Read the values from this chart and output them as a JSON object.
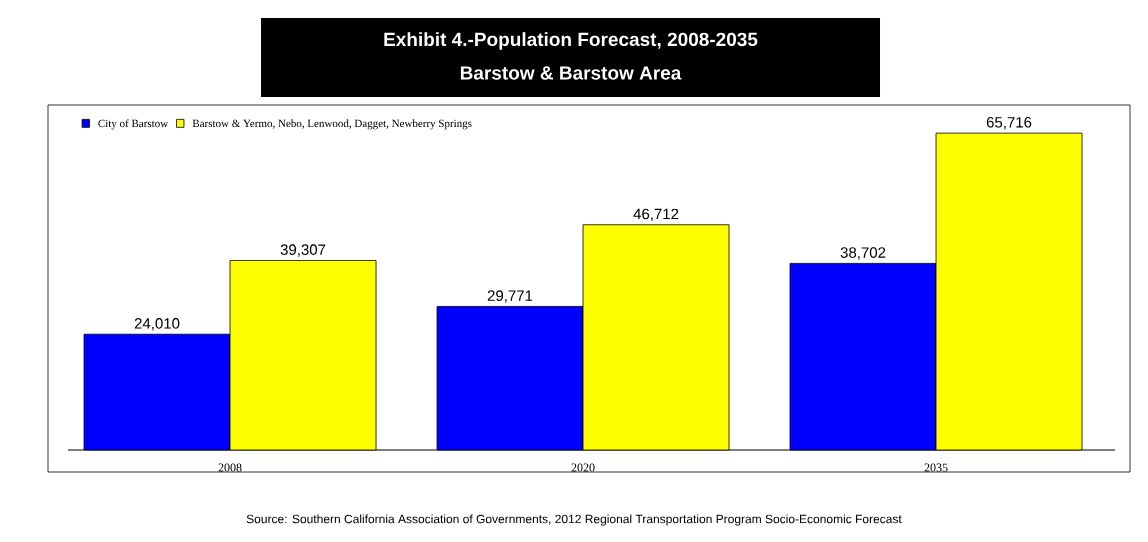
{
  "chart_data": {
    "type": "bar",
    "title": "Exhibit 4.-Population Forecast, 2008-2035",
    "subtitle": "Barstow & Barstow Area",
    "categories": [
      "2008",
      "2020",
      "2035"
    ],
    "series": [
      {
        "name": "City of Barstow",
        "color": "#0000ff",
        "values": [
          24010,
          29771,
          38702
        ],
        "value_labels": [
          "24,010",
          "29,771",
          "38,702"
        ]
      },
      {
        "name": "Barstow & Yermo, Nebo, Lenwood, Dagget, Newberry Springs",
        "color": "#ffff00",
        "values": [
          39307,
          46712,
          65716
        ],
        "value_labels": [
          "39,307",
          "46,712",
          "65,716"
        ]
      }
    ],
    "legend": "top left",
    "annotations": [
      "Source:  Southern California Association of Governments, 2012 Regional Transportation Program Socio-Economic Forecast"
    ]
  }
}
